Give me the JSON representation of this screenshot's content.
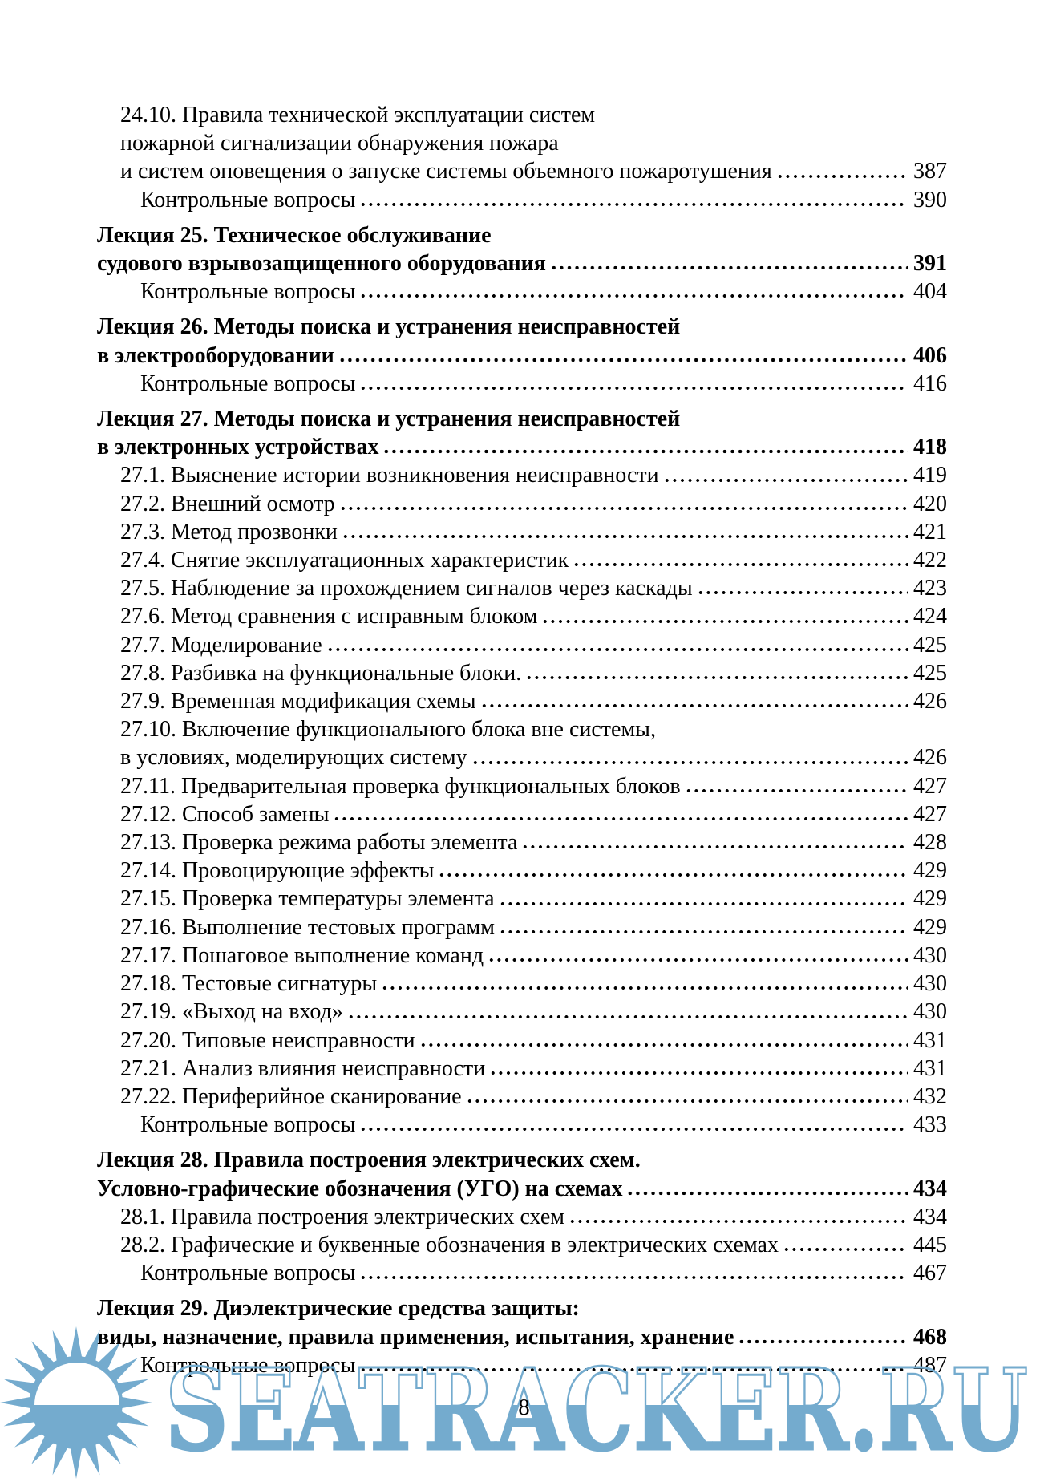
{
  "page": {
    "folio": "8"
  },
  "watermark": {
    "text": "SEATRACKER.RU",
    "color": "#74abce",
    "icon": "sun-logo-icon"
  },
  "toc": {
    "entries": [
      {
        "level": "section",
        "pre_lines": [
          "24.10. Правила технической эксплуатации систем",
          "пожарной сигнализации обнаружения пожара"
        ],
        "line": "и систем оповещения о запуске системы объемного пожаротушения",
        "page": "387"
      },
      {
        "level": "questions",
        "pre_lines": [],
        "line": "Контрольные вопросы",
        "page": "390"
      },
      {
        "level": "lecture",
        "pre_lines": [
          "Лекция 25. Техническое обслуживание"
        ],
        "line": "судового взрывозащищенного оборудования",
        "page": "391"
      },
      {
        "level": "questions",
        "pre_lines": [],
        "line": "Контрольные вопросы",
        "page": "404"
      },
      {
        "level": "lecture",
        "pre_lines": [
          "Лекция 26. Методы поиска и устранения неисправностей"
        ],
        "line": "в электрооборудовании",
        "page": "406"
      },
      {
        "level": "questions",
        "pre_lines": [],
        "line": "Контрольные вопросы",
        "page": "416"
      },
      {
        "level": "lecture",
        "pre_lines": [
          "Лекция 27. Методы поиска и устранения неисправностей"
        ],
        "line": "в электронных устройствах",
        "page": "418"
      },
      {
        "level": "section",
        "pre_lines": [],
        "line": "27.1. Выяснение истории возникновения неисправности",
        "page": "419"
      },
      {
        "level": "section",
        "pre_lines": [],
        "line": "27.2. Внешний осмотр",
        "page": "420"
      },
      {
        "level": "section",
        "pre_lines": [],
        "line": "27.3. Метод прозвонки",
        "page": "421"
      },
      {
        "level": "section",
        "pre_lines": [],
        "line": "27.4. Снятие эксплуатационных характеристик",
        "page": "422"
      },
      {
        "level": "section",
        "pre_lines": [],
        "line": "27.5. Наблюдение за прохождением сигналов через каскады",
        "page": "423"
      },
      {
        "level": "section",
        "pre_lines": [],
        "line": "27.6. Метод сравнения с исправным блоком",
        "page": "424"
      },
      {
        "level": "section",
        "pre_lines": [],
        "line": "27.7. Моделирование",
        "page": "425"
      },
      {
        "level": "section",
        "pre_lines": [],
        "line": "27.8. Разбивка на функциональные блоки.",
        "page": "425"
      },
      {
        "level": "section",
        "pre_lines": [],
        "line": "27.9. Временная модификация схемы",
        "page": "426"
      },
      {
        "level": "section",
        "pre_lines": [
          "27.10. Включение функционального блока вне системы,"
        ],
        "line": "в условиях, моделирующих систему",
        "page": "426"
      },
      {
        "level": "section",
        "pre_lines": [],
        "line": "27.11. Предварительная проверка функциональных блоков",
        "page": "427"
      },
      {
        "level": "section",
        "pre_lines": [],
        "line": "27.12. Способ замены",
        "page": "427"
      },
      {
        "level": "section",
        "pre_lines": [],
        "line": "27.13. Проверка режима работы элемента",
        "page": "428"
      },
      {
        "level": "section",
        "pre_lines": [],
        "line": "27.14. Провоцирующие эффекты",
        "page": "429"
      },
      {
        "level": "section",
        "pre_lines": [],
        "line": "27.15. Проверка температуры элемента",
        "page": "429"
      },
      {
        "level": "section",
        "pre_lines": [],
        "line": "27.16. Выполнение тестовых программ",
        "page": "429"
      },
      {
        "level": "section",
        "pre_lines": [],
        "line": "27.17. Пошаговое выполнение команд",
        "page": "430"
      },
      {
        "level": "section",
        "pre_lines": [],
        "line": "27.18. Тестовые сигнатуры",
        "page": "430"
      },
      {
        "level": "section",
        "pre_lines": [],
        "line": "27.19. «Выход на вход»",
        "page": "430"
      },
      {
        "level": "section",
        "pre_lines": [],
        "line": "27.20. Типовые неисправности",
        "page": "431"
      },
      {
        "level": "section",
        "pre_lines": [],
        "line": "27.21. Анализ влияния неисправности",
        "page": "431"
      },
      {
        "level": "section",
        "pre_lines": [],
        "line": "27.22. Периферийное сканирование",
        "page": "432"
      },
      {
        "level": "questions",
        "pre_lines": [],
        "line": "Контрольные вопросы",
        "page": "433"
      },
      {
        "level": "lecture",
        "pre_lines": [
          "Лекция 28. Правила построения электрических схем."
        ],
        "line": "Условно-графические обозначения (УГО) на схемах",
        "page": "434"
      },
      {
        "level": "section",
        "pre_lines": [],
        "line": "28.1. Правила построения электрических схем",
        "page": "434"
      },
      {
        "level": "section",
        "pre_lines": [],
        "line": "28.2. Графические и буквенные обозначения в электрических схемах",
        "page": "445"
      },
      {
        "level": "questions",
        "pre_lines": [],
        "line": "Контрольные вопросы",
        "page": "467"
      },
      {
        "level": "lecture",
        "pre_lines": [
          "Лекция 29. Диэлектрические средства защиты:"
        ],
        "line": "виды, назначение, правила применения, испытания, хранение",
        "page": "468"
      },
      {
        "level": "questions",
        "pre_lines": [],
        "line": "Контрольные вопросы",
        "page": "487"
      }
    ]
  }
}
